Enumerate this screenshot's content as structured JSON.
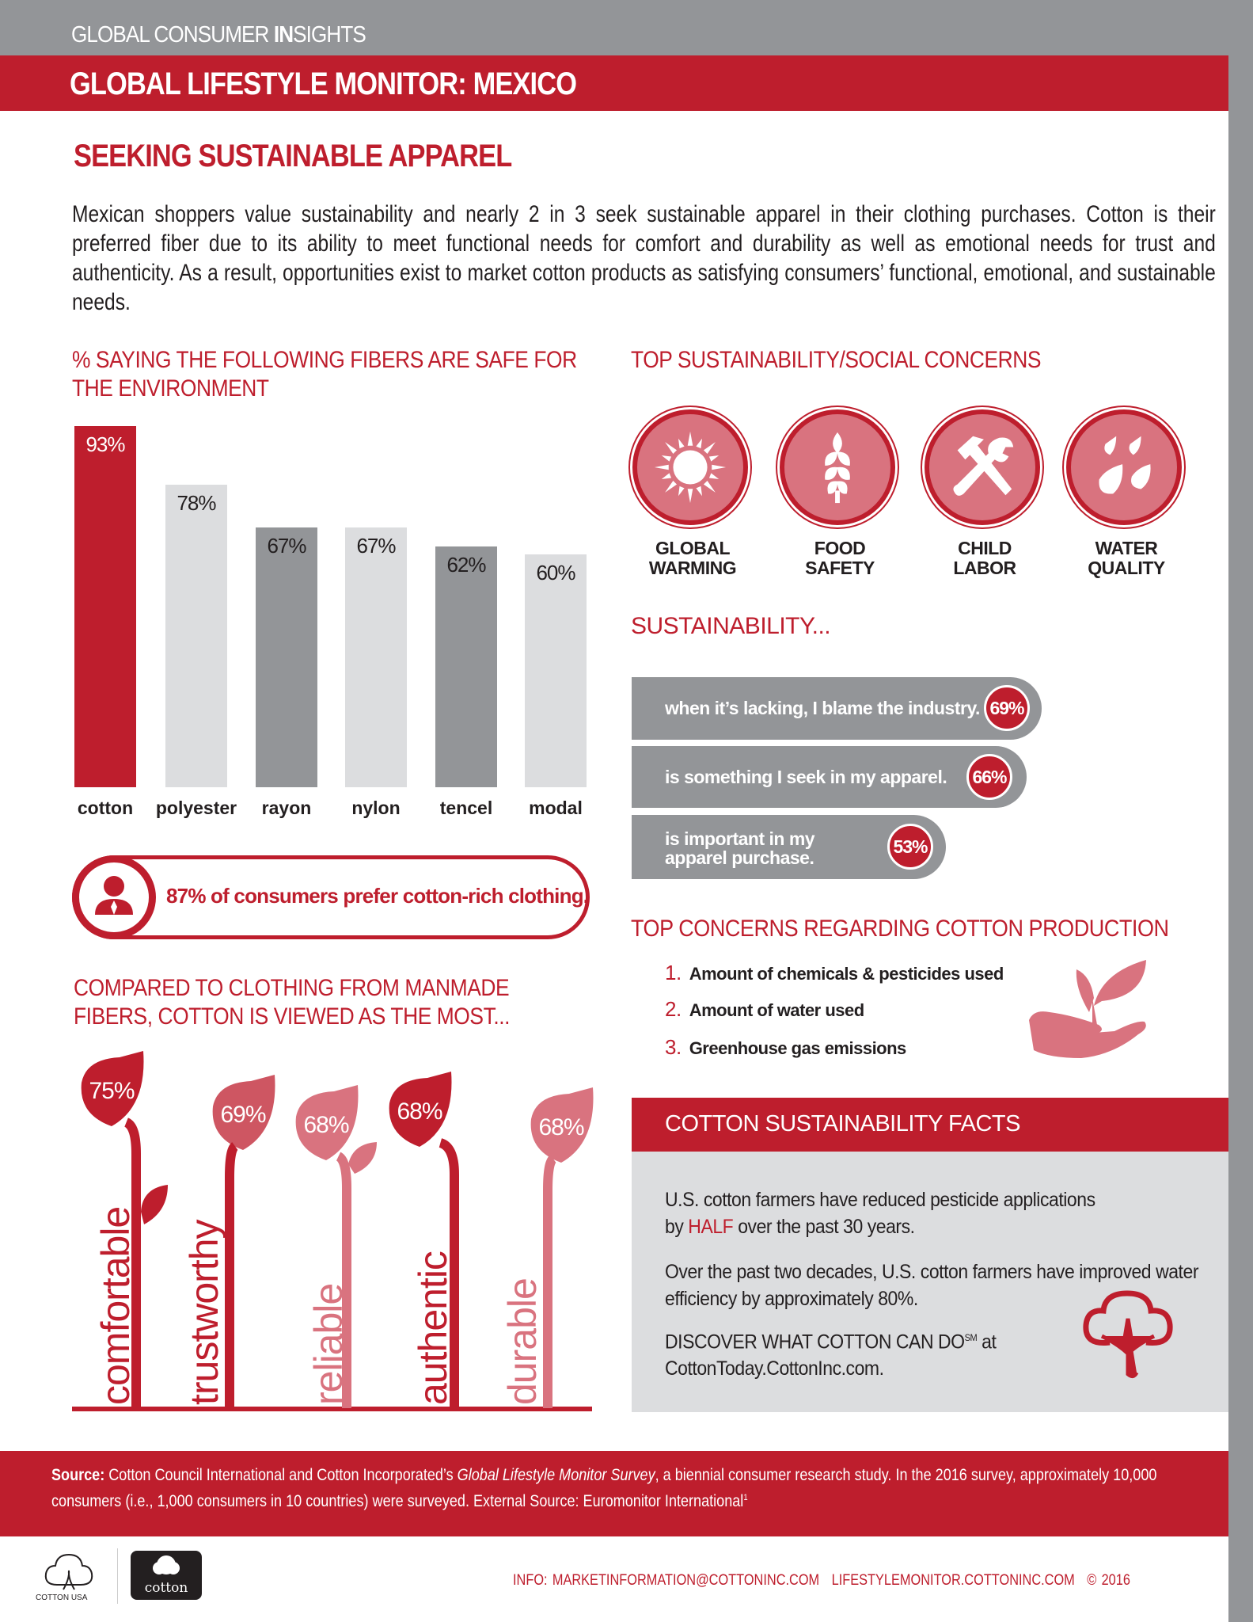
{
  "header": {
    "kicker_regular_1": "GLOBAL CONSUMER ",
    "kicker_bold": "IN",
    "kicker_regular_2": "SIGHTS",
    "title": "GLOBAL LIFESTYLE MONITOR: MEXICO"
  },
  "section": {
    "title": "SEEKING SUSTAINABLE APPAREL",
    "intro": "Mexican shoppers value sustainability and nearly 2 in 3 seek sustainable apparel in their clothing purchases. Cotton is their preferred fiber due to its ability to meet functional needs for comfort and durability as well as emotional needs for trust and authenticity. As a result, opportunities exist to market cotton products as satisfying consumers’ functional, emotional, and sustainable needs."
  },
  "chart_data": [
    {
      "type": "bar",
      "title": "% SAYING THE FOLLOWING FIBERS ARE SAFE FOR THE ENVIRONMENT",
      "categories": [
        "cotton",
        "polyester",
        "rayon",
        "nylon",
        "tencel",
        "modal"
      ],
      "values": [
        93,
        78,
        67,
        67,
        62,
        60
      ],
      "labels": [
        "93%",
        "78%",
        "67%",
        "67%",
        "62%",
        "60%"
      ],
      "colors": [
        "#be1e2d",
        "#dcdddf",
        "#939598",
        "#dcdddf",
        "#939598",
        "#dcdddf"
      ],
      "ylim": [
        0,
        100
      ]
    },
    {
      "type": "bar",
      "title": "COMPARED TO CLOTHING FROM MANMADE FIBERS, COTTON IS VIEWED AS THE MOST...",
      "categories": [
        "comfortable",
        "trustworthy",
        "reliable",
        "authentic",
        "durable"
      ],
      "values": [
        75,
        69,
        68,
        68,
        68
      ],
      "labels": [
        "75%",
        "69%",
        "68%",
        "68%",
        "68%"
      ],
      "colors": [
        "#be1e2d",
        "#be1e2d",
        "#d9737f",
        "#be1e2d",
        "#d9737f"
      ]
    }
  ],
  "callout": {
    "text": "87% of consumers prefer cotton-rich clothing."
  },
  "concerns": {
    "title": "TOP SUSTAINABILITY/SOCIAL CONCERNS",
    "items": [
      {
        "l1": "GLOBAL",
        "l2": "WARMING"
      },
      {
        "l1": "FOOD",
        "l2": "SAFETY"
      },
      {
        "l1": "CHILD",
        "l2": "LABOR"
      },
      {
        "l1": "WATER",
        "l2": "QUALITY"
      }
    ]
  },
  "sustainability": {
    "title": "SUSTAINABILITY...",
    "items": [
      {
        "text": "when it’s lacking, I blame the industry.",
        "value": "69%"
      },
      {
        "text": "is something I seek in my apparel.",
        "value": "66%"
      },
      {
        "text1": "is important in my",
        "text2": "apparel purchase.",
        "value": "53%"
      }
    ]
  },
  "production": {
    "title": "TOP CONCERNS REGARDING COTTON PRODUCTION",
    "items": [
      {
        "n": "1.",
        "text": "Amount of chemicals & pesticides used"
      },
      {
        "n": "2.",
        "text": "Amount of water used"
      },
      {
        "n": "3.",
        "text": "Greenhouse gas emissions"
      }
    ]
  },
  "facts": {
    "title": "COTTON SUSTAINABILITY FACTS",
    "f1a": "U.S. cotton farmers have reduced pesticide applications",
    "f1b": "by ",
    "f1half": "HALF",
    "f1c": " over the past 30 years.",
    "f2": "Over the past two decades, U.S. cotton farmers have improved water efficiency by approximately 80%.",
    "f3a": "DISCOVER WHAT COTTON CAN DO",
    "f3sm": "SM",
    "f3b": " at",
    "f3c": "CottonToday.CottonInc.com."
  },
  "footer": {
    "source_label": "Source:",
    "source_a": " Cotton Council International and Cotton Incorporated’s ",
    "source_italic": "Global Lifestyle Monitor Survey",
    "source_b": ", a biennial consumer research study. In the 2016 survey, approximately 10,000 consumers (i.e., 1,000 consumers in 10 countries) were surveyed.  External Source: Euromonitor International",
    "source_sup": "1",
    "info": "INFO: MARKETINFORMATION@COTTONINC.COM",
    "site": "LIFESTYLEMONITOR.COTTONINC.COM",
    "copyright": "© 2016",
    "logo1": "COTTON USA",
    "logo2": "cotton"
  },
  "colors": {
    "red": "#be1e2d",
    "pink": "#d9737f",
    "gray": "#939598",
    "lightgray": "#dcdddf"
  }
}
